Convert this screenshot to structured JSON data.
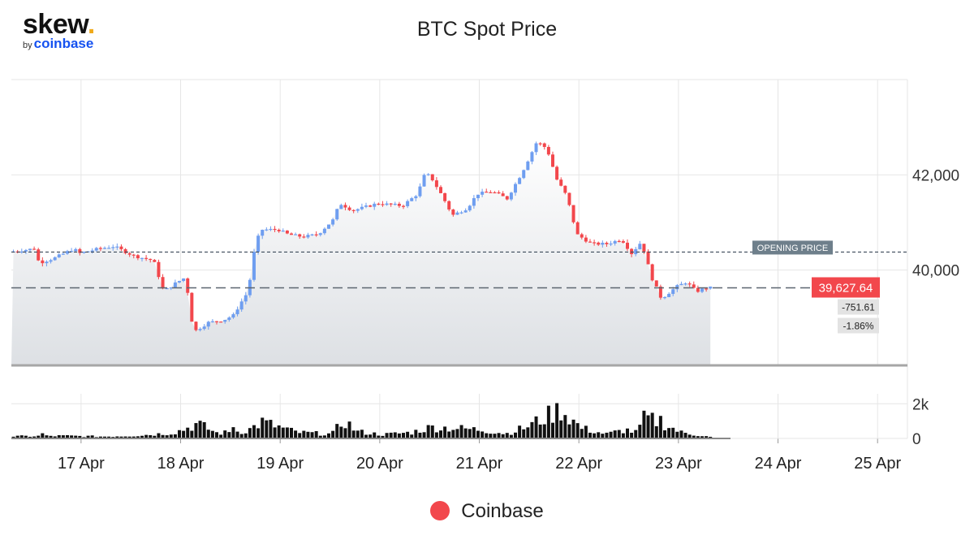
{
  "logo": {
    "word": "skew",
    "dot": ".",
    "by": "by",
    "brand": "coinbase"
  },
  "colors": {
    "up": "#6f9ef0",
    "down": "#f2474c",
    "volume": "#111111",
    "grid": "#e6e6e6",
    "opening_line": "#3c4a5a",
    "current_line": "#5c6670"
  },
  "chart_data": {
    "type": "candlestick",
    "title": "BTC Spot Price",
    "xlabel": "",
    "ylabel": "",
    "x_ticks": [
      "17 Apr",
      "18 Apr",
      "19 Apr",
      "20 Apr",
      "21 Apr",
      "22 Apr",
      "23 Apr",
      "24 Apr",
      "25 Apr"
    ],
    "y_ticks": [
      "42,000",
      "40,000"
    ],
    "y_tick_values": [
      42000,
      40000
    ],
    "volume_ticks": [
      "2k",
      "0"
    ],
    "volume_tick_values": [
      2000,
      0
    ],
    "ylim": [
      38000,
      44000
    ],
    "volume_ylim": [
      0,
      2200
    ],
    "xlim_days": [
      16.3,
      25.3
    ],
    "grid": true,
    "opening_price": {
      "label": "OPENING PRICE",
      "value": 40379
    },
    "current_price": {
      "value": 39628,
      "label": "39,627.64"
    },
    "change_abs": "-751.61",
    "change_pct": "-1.86%",
    "legend": [
      {
        "name": "Coinbase",
        "color": "#f2474c"
      }
    ],
    "price_anchors": [
      [
        16.3,
        40380
      ],
      [
        16.55,
        40450
      ],
      [
        16.6,
        40150
      ],
      [
        16.75,
        40250
      ],
      [
        16.95,
        40450
      ],
      [
        17.0,
        40350
      ],
      [
        17.2,
        40450
      ],
      [
        17.35,
        40500
      ],
      [
        17.55,
        40300
      ],
      [
        17.75,
        40200
      ],
      [
        17.85,
        39550
      ],
      [
        17.95,
        39700
      ],
      [
        18.07,
        39850
      ],
      [
        18.15,
        38700
      ],
      [
        18.3,
        38900
      ],
      [
        18.45,
        38950
      ],
      [
        18.55,
        39050
      ],
      [
        18.65,
        39400
      ],
      [
        18.7,
        39550
      ],
      [
        18.75,
        40300
      ],
      [
        18.82,
        40850
      ],
      [
        19.0,
        40850
      ],
      [
        19.1,
        40750
      ],
      [
        19.25,
        40700
      ],
      [
        19.4,
        40750
      ],
      [
        19.55,
        41050
      ],
      [
        19.62,
        41400
      ],
      [
        19.75,
        41250
      ],
      [
        20.0,
        41400
      ],
      [
        20.25,
        41350
      ],
      [
        20.4,
        41600
      ],
      [
        20.48,
        42050
      ],
      [
        20.55,
        41900
      ],
      [
        20.65,
        41550
      ],
      [
        20.75,
        41150
      ],
      [
        20.9,
        41300
      ],
      [
        21.0,
        41600
      ],
      [
        21.15,
        41650
      ],
      [
        21.3,
        41500
      ],
      [
        21.45,
        42050
      ],
      [
        21.6,
        42700
      ],
      [
        21.7,
        42550
      ],
      [
        21.8,
        41900
      ],
      [
        21.9,
        41550
      ],
      [
        22.0,
        40750
      ],
      [
        22.15,
        40550
      ],
      [
        22.3,
        40550
      ],
      [
        22.45,
        40650
      ],
      [
        22.55,
        40350
      ],
      [
        22.65,
        40600
      ],
      [
        22.75,
        39850
      ],
      [
        22.85,
        39400
      ],
      [
        23.0,
        39650
      ],
      [
        23.1,
        39750
      ],
      [
        23.2,
        39550
      ],
      [
        23.3,
        39628
      ]
    ],
    "volume_anchors": [
      [
        16.3,
        120
      ],
      [
        16.8,
        150
      ],
      [
        17.2,
        110
      ],
      [
        17.5,
        160
      ],
      [
        17.7,
        230
      ],
      [
        17.9,
        330
      ],
      [
        18.0,
        500
      ],
      [
        18.15,
        850
      ],
      [
        18.35,
        300
      ],
      [
        18.65,
        450
      ],
      [
        18.8,
        950
      ],
      [
        19.0,
        600
      ],
      [
        19.15,
        350
      ],
      [
        19.5,
        250
      ],
      [
        19.62,
        1050
      ],
      [
        19.75,
        400
      ],
      [
        20.0,
        220
      ],
      [
        20.3,
        350
      ],
      [
        20.5,
        650
      ],
      [
        20.7,
        600
      ],
      [
        21.0,
        500
      ],
      [
        21.25,
        280
      ],
      [
        21.45,
        650
      ],
      [
        21.6,
        1100
      ],
      [
        21.8,
        1700
      ],
      [
        22.0,
        600
      ],
      [
        22.25,
        250
      ],
      [
        22.45,
        500
      ],
      [
        22.55,
        350
      ],
      [
        22.65,
        1200
      ],
      [
        22.85,
        800
      ],
      [
        23.0,
        350
      ],
      [
        23.15,
        220
      ],
      [
        23.3,
        80
      ]
    ],
    "volume_spikes": [
      [
        16.6,
        300
      ],
      [
        18.5,
        650
      ],
      [
        21.85,
        1350
      ],
      [
        22.62,
        1600
      ],
      [
        22.8,
        1300
      ]
    ]
  }
}
